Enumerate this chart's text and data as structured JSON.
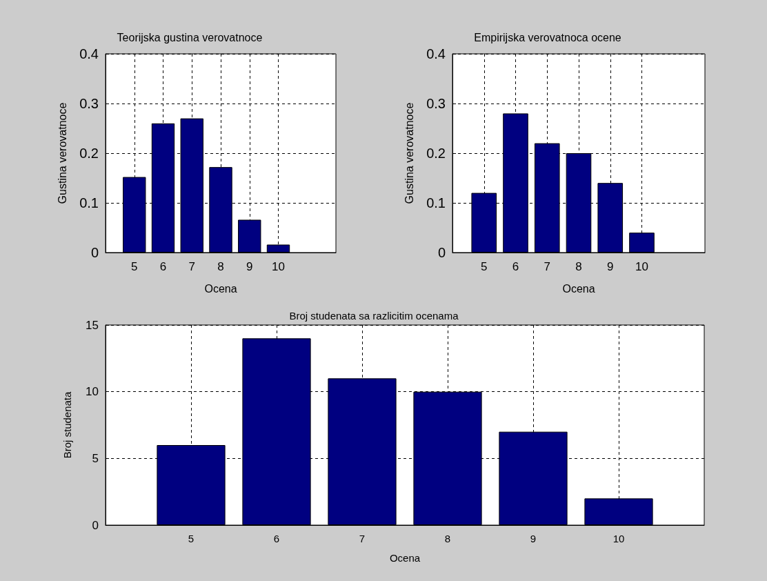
{
  "chart_data": [
    {
      "type": "bar",
      "title": "Teorijska gustina verovatnoce",
      "xlabel": "Ocena",
      "ylabel": "Gustina verovatnoce",
      "x": [
        5,
        6,
        7,
        8,
        9,
        10
      ],
      "values": [
        0.152,
        0.26,
        0.27,
        0.172,
        0.066,
        0.016
      ],
      "color": "#000080",
      "xlim": [
        4,
        12
      ],
      "xticks": [
        5,
        6,
        7,
        8,
        9,
        10
      ],
      "ylim": [
        0,
        0.4
      ],
      "yticks": [
        0,
        0.1,
        0.2,
        0.3,
        0.4
      ],
      "grid": true
    },
    {
      "type": "bar",
      "title": "Empirijska verovatnoca ocene",
      "xlabel": "Ocena",
      "ylabel": "Gustina verovatnoce",
      "x": [
        5,
        6,
        7,
        8,
        9,
        10
      ],
      "values": [
        0.12,
        0.28,
        0.22,
        0.2,
        0.14,
        0.04
      ],
      "color": "#000080",
      "xlim": [
        4,
        12
      ],
      "xticks": [
        5,
        6,
        7,
        8,
        9,
        10
      ],
      "ylim": [
        0,
        0.4
      ],
      "yticks": [
        0,
        0.1,
        0.2,
        0.3,
        0.4
      ],
      "grid": true
    },
    {
      "type": "bar",
      "title": "Broj studenata sa razlicitim ocenama",
      "xlabel": "Ocena",
      "ylabel": "Broj studenata",
      "x": [
        5,
        6,
        7,
        8,
        9,
        10
      ],
      "values": [
        6,
        14,
        11,
        10,
        7,
        2
      ],
      "color": "#000080",
      "xlim": [
        4,
        11
      ],
      "xticks": [
        5,
        6,
        7,
        8,
        9,
        10
      ],
      "ylim": [
        0,
        15
      ],
      "yticks": [
        0,
        5,
        10,
        15
      ],
      "grid": true
    }
  ]
}
